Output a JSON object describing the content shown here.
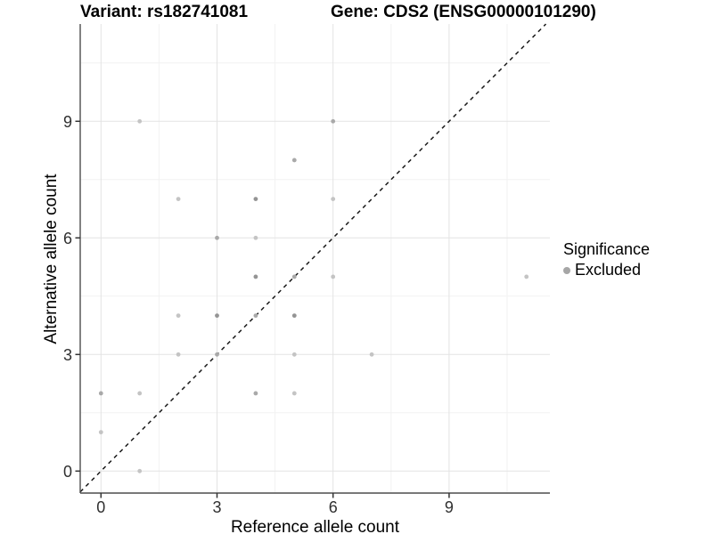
{
  "titles": {
    "variant": "Variant: rs182741081",
    "gene": "Gene: CDS2 (ENSG00000101290)"
  },
  "chart_data": {
    "type": "scatter",
    "xlabel": "Reference allele count",
    "ylabel": "Alternative allele count",
    "x_ticks": [
      0,
      3,
      6,
      9
    ],
    "y_ticks": [
      0,
      3,
      6,
      9
    ],
    "x_minor_gridlines": [
      1.5,
      4.5,
      7.5,
      10.5
    ],
    "y_minor_gridlines": [
      1.5,
      4.5,
      7.5,
      10.5
    ],
    "xlim": [
      -0.55,
      11.6
    ],
    "ylim": [
      -0.58,
      11.45
    ],
    "grid": "major-and-minor-on",
    "diagonal_line": {
      "style": "dashed",
      "color": "#1a1a1a",
      "from": [
        -0.54,
        -0.54
      ],
      "to": [
        11.48,
        11.48
      ]
    },
    "legend": {
      "position": "right",
      "title": "Significance",
      "items": [
        {
          "label": "Excluded",
          "color": "#a6a6a6"
        }
      ]
    },
    "shade_colors": {
      "light": "#c4c4c4",
      "medium": "#a9a9a9",
      "dark": "#949494"
    },
    "points": [
      {
        "x": 0,
        "y": 1,
        "shade": "light"
      },
      {
        "x": 0,
        "y": 2,
        "shade": "medium"
      },
      {
        "x": 1,
        "y": 0,
        "shade": "light"
      },
      {
        "x": 1,
        "y": 2,
        "shade": "light"
      },
      {
        "x": 1,
        "y": 9,
        "shade": "light"
      },
      {
        "x": 2,
        "y": 3,
        "shade": "light"
      },
      {
        "x": 2,
        "y": 4,
        "shade": "light"
      },
      {
        "x": 2,
        "y": 7,
        "shade": "light"
      },
      {
        "x": 3,
        "y": 3,
        "shade": "medium"
      },
      {
        "x": 3,
        "y": 4,
        "shade": "dark"
      },
      {
        "x": 3,
        "y": 6,
        "shade": "medium"
      },
      {
        "x": 4,
        "y": 2,
        "shade": "medium"
      },
      {
        "x": 4,
        "y": 4,
        "shade": "medium"
      },
      {
        "x": 4,
        "y": 5,
        "shade": "dark"
      },
      {
        "x": 4,
        "y": 6,
        "shade": "light"
      },
      {
        "x": 4,
        "y": 7,
        "shade": "dark"
      },
      {
        "x": 5,
        "y": 2,
        "shade": "light"
      },
      {
        "x": 5,
        "y": 3,
        "shade": "light"
      },
      {
        "x": 5,
        "y": 4,
        "shade": "dark"
      },
      {
        "x": 5,
        "y": 5,
        "shade": "medium"
      },
      {
        "x": 5,
        "y": 8,
        "shade": "medium"
      },
      {
        "x": 6,
        "y": 5,
        "shade": "light"
      },
      {
        "x": 6,
        "y": 7,
        "shade": "light"
      },
      {
        "x": 6,
        "y": 9,
        "shade": "medium"
      },
      {
        "x": 7,
        "y": 3,
        "shade": "light"
      },
      {
        "x": 11,
        "y": 5,
        "shade": "light"
      }
    ],
    "colors": {
      "major_gridline": "#e3e3e3",
      "minor_gridline": "#f2f2f2",
      "axis_line": "#4d4d4d",
      "tick_mark": "#333333",
      "tick_label": "#303030"
    }
  }
}
